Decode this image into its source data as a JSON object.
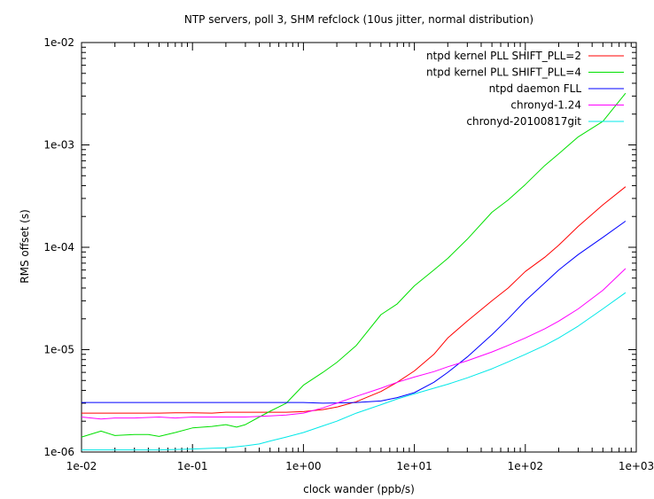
{
  "chart_data": {
    "type": "line",
    "title": "NTP servers, poll 3, SHM refclock (10us jitter, normal distribution)",
    "xlabel": "clock wander (ppb/s)",
    "ylabel": "RMS offset (s)",
    "xscale": "log",
    "yscale": "log",
    "xlim": [
      0.01,
      1000
    ],
    "ylim": [
      1e-06,
      0.01
    ],
    "x_tick_labels": [
      "1e-02",
      "1e-01",
      "1e+00",
      "1e+01",
      "1e+02",
      "1e+03"
    ],
    "y_tick_labels": [
      "1e-06",
      "1e-05",
      "1e-04",
      "1e-03",
      "1e-02"
    ],
    "grid": false,
    "legend_position": "top-right",
    "series": [
      {
        "name": "ntpd kernel PLL SHIFT_PLL=2",
        "color": "#ff0000",
        "x": [
          0.01,
          0.015,
          0.02,
          0.03,
          0.05,
          0.07,
          0.1,
          0.15,
          0.2,
          0.3,
          0.5,
          0.7,
          1,
          1.5,
          2,
          3,
          5,
          7,
          10,
          15,
          20,
          30,
          50,
          70,
          100,
          150,
          200,
          300,
          500,
          800
        ],
        "y": [
          2.4e-06,
          2.4e-06,
          2.4e-06,
          2.4e-06,
          2.4e-06,
          2.42e-06,
          2.42e-06,
          2.4e-06,
          2.45e-06,
          2.45e-06,
          2.45e-06,
          2.45e-06,
          2.48e-06,
          2.6e-06,
          2.75e-06,
          3.1e-06,
          3.9e-06,
          4.8e-06,
          6.2e-06,
          9e-06,
          1.3e-05,
          1.9e-05,
          3e-05,
          4e-05,
          5.8e-05,
          8e-05,
          0.000105,
          0.00016,
          0.00026,
          0.00039
        ]
      },
      {
        "name": "ntpd kernel PLL SHIFT_PLL=4",
        "color": "#00e000",
        "x": [
          0.01,
          0.015,
          0.02,
          0.03,
          0.04,
          0.05,
          0.07,
          0.1,
          0.15,
          0.2,
          0.25,
          0.3,
          0.4,
          0.5,
          0.7,
          1,
          1.5,
          2,
          3,
          5,
          7,
          10,
          15,
          20,
          30,
          50,
          70,
          100,
          150,
          200,
          300,
          500,
          800
        ],
        "y": [
          1.4e-06,
          1.6e-06,
          1.45e-06,
          1.48e-06,
          1.48e-06,
          1.42e-06,
          1.55e-06,
          1.72e-06,
          1.78e-06,
          1.85e-06,
          1.75e-06,
          1.85e-06,
          2.2e-06,
          2.5e-06,
          3e-06,
          4.5e-06,
          6e-06,
          7.5e-06,
          1.1e-05,
          2.2e-05,
          2.8e-05,
          4.2e-05,
          6e-05,
          7.8e-05,
          0.00012,
          0.00022,
          0.00029,
          0.00041,
          0.00063,
          0.00082,
          0.0012,
          0.0017,
          0.0032
        ]
      },
      {
        "name": "ntpd daemon FLL",
        "color": "#0000ff",
        "x": [
          0.01,
          0.02,
          0.05,
          0.1,
          0.2,
          0.3,
          0.5,
          1,
          1.5,
          2,
          3,
          5,
          7,
          10,
          15,
          20,
          30,
          50,
          70,
          100,
          150,
          200,
          300,
          500,
          800
        ],
        "y": [
          3.05e-06,
          3.05e-06,
          3.05e-06,
          3.05e-06,
          3.05e-06,
          3.05e-06,
          3.05e-06,
          3.05e-06,
          3e-06,
          3.02e-06,
          3.05e-06,
          3.15e-06,
          3.4e-06,
          3.8e-06,
          4.8e-06,
          6e-06,
          8.5e-06,
          1.4e-05,
          2e-05,
          3e-05,
          4.5e-05,
          6e-05,
          8.5e-05,
          0.000125,
          0.00018
        ]
      },
      {
        "name": "chronyd-1.24",
        "color": "#ff00ff",
        "x": [
          0.01,
          0.015,
          0.02,
          0.03,
          0.05,
          0.07,
          0.1,
          0.15,
          0.2,
          0.3,
          0.5,
          0.7,
          1,
          1.5,
          2,
          3,
          5,
          7,
          10,
          15,
          20,
          30,
          50,
          70,
          100,
          150,
          200,
          300,
          500,
          800
        ],
        "y": [
          2.2e-06,
          2.1e-06,
          2.15e-06,
          2.15e-06,
          2.2e-06,
          2.15e-06,
          2.2e-06,
          2.2e-06,
          2.2e-06,
          2.2e-06,
          2.25e-06,
          2.3e-06,
          2.4e-06,
          2.7e-06,
          3e-06,
          3.5e-06,
          4.2e-06,
          4.8e-06,
          5.4e-06,
          6.1e-06,
          6.8e-06,
          7.8e-06,
          9.5e-06,
          1.1e-05,
          1.3e-05,
          1.6e-05,
          1.9e-05,
          2.5e-05,
          3.8e-05,
          6.2e-05
        ]
      },
      {
        "name": "chronyd-20100817git",
        "color": "#00e8e8",
        "x": [
          0.01,
          0.02,
          0.05,
          0.1,
          0.15,
          0.2,
          0.3,
          0.4,
          0.5,
          0.7,
          1,
          1.5,
          2,
          3,
          5,
          7,
          10,
          15,
          20,
          30,
          50,
          70,
          100,
          150,
          200,
          300,
          500,
          800
        ],
        "y": [
          1.05e-06,
          1.05e-06,
          1.05e-06,
          1.07e-06,
          1.09e-06,
          1.1e-06,
          1.15e-06,
          1.2e-06,
          1.28e-06,
          1.4e-06,
          1.55e-06,
          1.8e-06,
          2e-06,
          2.4e-06,
          2.9e-06,
          3.3e-06,
          3.7e-06,
          4.2e-06,
          4.6e-06,
          5.3e-06,
          6.5e-06,
          7.6e-06,
          9e-06,
          1.1e-05,
          1.3e-05,
          1.7e-05,
          2.5e-05,
          3.6e-05
        ]
      }
    ]
  }
}
